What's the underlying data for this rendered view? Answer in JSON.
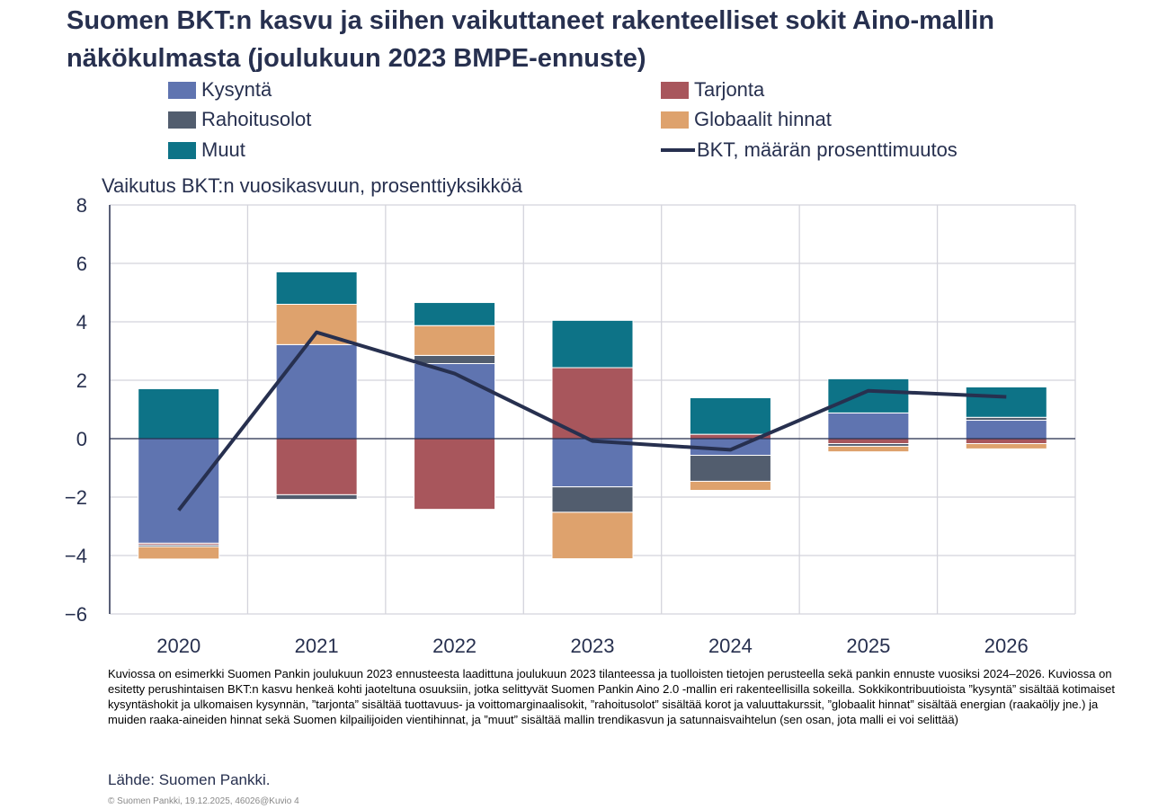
{
  "title": "Suomen BKT:n kasvu ja siihen vaikuttaneet rakenteelliset sokit Aino-mallin näkökulmasta (joulukuun 2023 BMPE-ennuste)",
  "chart_data": {
    "type": "bar",
    "stacked": true,
    "ylabel": "Vaikutus BKT:n vuosikasvuun, prosenttiyksikköä",
    "ylim": [
      -6,
      8
    ],
    "yticks": [
      "−6",
      "−4",
      "−2",
      "0",
      "2",
      "4",
      "6",
      "8"
    ],
    "ytick_values": [
      -6,
      -4,
      -2,
      0,
      2,
      4,
      6,
      8
    ],
    "grid": true,
    "legend": "top",
    "categories": [
      "2020",
      "2021",
      "2022",
      "2023",
      "2024",
      "2025",
      "2026"
    ],
    "series": [
      {
        "name": "Kysyntä",
        "color": "#5f74b0",
        "values": [
          -3.58,
          3.22,
          2.57,
          -1.65,
          -0.57,
          0.88,
          0.63
        ]
      },
      {
        "name": "Tarjonta",
        "color": "#a8565c",
        "values": [
          -0.06,
          -1.92,
          -2.42,
          2.43,
          0.15,
          -0.17,
          -0.17
        ]
      },
      {
        "name": "Rahoitusolot",
        "color": "#525d6e",
        "values": [
          -0.06,
          -0.16,
          0.28,
          -0.87,
          -0.89,
          -0.09,
          0.1
        ]
      },
      {
        "name": "Globaalit hinnat",
        "color": "#dea26d",
        "values": [
          -0.42,
          1.38,
          1.02,
          -1.59,
          -0.31,
          -0.19,
          -0.18
        ]
      },
      {
        "name": "Muut",
        "color": "#0d7387",
        "values": [
          1.71,
          1.11,
          0.79,
          1.62,
          1.25,
          1.17,
          1.04
        ]
      }
    ],
    "line": {
      "name": "BKT, määrän prosenttimuutos",
      "color": "#27304f",
      "values": [
        -2.45,
        3.64,
        2.23,
        -0.08,
        -0.38,
        1.64,
        1.43
      ]
    }
  },
  "note": "Kuviossa on esimerkki Suomen Pankin joulukuun 2023 ennusteesta laadittuna joulukuun 2023 tilanteessa ja tuolloisten tietojen perusteella sekä pankin ennuste vuosiksi 2024–2026. Kuviossa on esitetty perushintaisen BKT:n kasvu henkeä kohti jaoteltuna osuuksiin, jotka selittyvät Suomen Pankin Aino 2.0 -mallin eri rakenteellisilla sokeilla. Sokkikontribuutioista ”kysyntä” sisältää kotimaiset kysyntäshokit ja ulkomaisen kysynnän, ”tarjonta” sisältää tuottavuus- ja voittomarginaalisokit, ”rahoitusolot” sisältää korot ja valuuttakurssit, ”globaalit hinnat” sisältää energian (raakaöljy jne.) ja muiden raaka-aineiden hinnat sekä Suomen kilpailijoiden vientihinnat, ja ”muut” sisältää mallin trendikasvun ja satunnaisvaihtelun (sen osan, jota malli ei voi selittää)",
  "source": "Lähde: Suomen Pankki.",
  "copyright": "© Suomen Pankki, 19.12.2025, 46026@Kuvio 4"
}
